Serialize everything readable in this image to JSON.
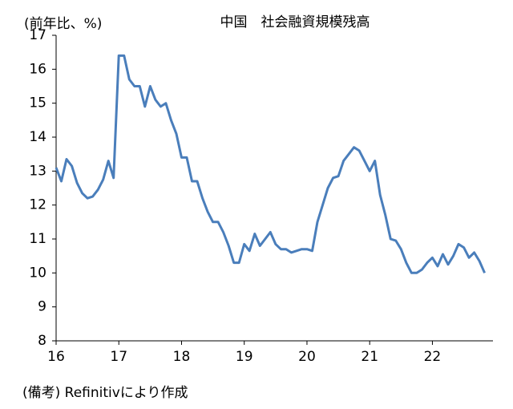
{
  "chart_data": {
    "type": "line",
    "title": "中国　社会融資規模残高",
    "y_label": "(前年比、%)",
    "note": "(備考) Refinitivにより作成",
    "color": "#4a7ebb",
    "categories": [
      "16",
      null,
      null,
      null,
      null,
      null,
      null,
      null,
      null,
      null,
      null,
      null,
      "17",
      null,
      null,
      null,
      null,
      null,
      null,
      null,
      null,
      null,
      null,
      null,
      "18",
      null,
      null,
      null,
      null,
      null,
      null,
      null,
      null,
      null,
      null,
      null,
      "19",
      null,
      null,
      null,
      null,
      null,
      null,
      null,
      null,
      null,
      null,
      null,
      "20",
      null,
      null,
      null,
      null,
      null,
      null,
      null,
      null,
      null,
      null,
      null,
      "21",
      null,
      null,
      null,
      null,
      null,
      null,
      null,
      null,
      null,
      null,
      null,
      "22",
      null,
      null,
      null,
      null,
      null,
      null,
      null,
      null,
      null,
      null
    ],
    "values": [
      13.1,
      12.7,
      13.35,
      13.15,
      12.65,
      12.35,
      12.2,
      12.25,
      12.45,
      12.75,
      13.3,
      12.8,
      16.4,
      16.4,
      15.7,
      15.5,
      15.5,
      14.9,
      15.5,
      15.1,
      14.9,
      15.0,
      14.5,
      14.1,
      13.4,
      13.4,
      12.7,
      12.7,
      12.2,
      11.8,
      11.5,
      11.5,
      11.2,
      10.8,
      10.3,
      10.3,
      10.85,
      10.65,
      11.15,
      10.8,
      11.0,
      11.2,
      10.85,
      10.7,
      10.7,
      10.6,
      10.65,
      10.7,
      10.7,
      10.65,
      11.5,
      12.0,
      12.5,
      12.8,
      12.85,
      13.3,
      13.5,
      13.7,
      13.6,
      13.3,
      13.0,
      13.3,
      12.3,
      11.7,
      11.0,
      10.95,
      10.7,
      10.3,
      10.0,
      10.0,
      10.1,
      10.3,
      10.45,
      10.2,
      10.55,
      10.25,
      10.5,
      10.85,
      10.75,
      10.45,
      10.6,
      10.35,
      10.0
    ],
    "ylim": [
      8,
      17
    ],
    "yticks": [
      8,
      9,
      10,
      11,
      12,
      13,
      14,
      15,
      16,
      17
    ]
  }
}
